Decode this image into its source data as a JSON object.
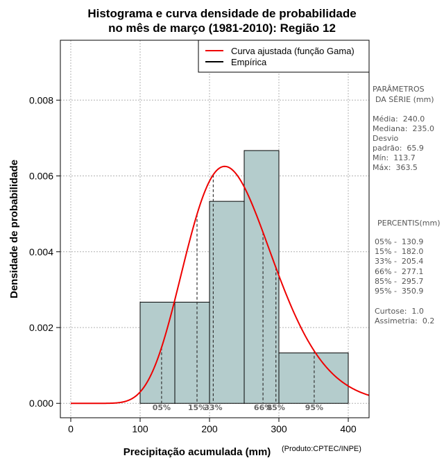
{
  "title_line1": "Histograma e curva densidade de probabilidade",
  "title_line2": "no mês de março (1981-2010): Região 12",
  "credit": "(Produto:CPTEC/INPE)",
  "colors": {
    "bar_fill": "#b4cccc",
    "curve": "#ee0000",
    "grid": "#b0b0b0"
  },
  "stats": {
    "header1": "PARÂMETROS",
    "header2": "DA SÉRIE (mm)",
    "media": "Média:  240.0",
    "mediana": "Mediana:  235.0",
    "desvio1": "Desvio",
    "desvio2": "padrão:  65.9",
    "min": "Mín:  113.7",
    "max": "Máx:  363.5"
  },
  "percentis": {
    "header": "PERCENTIS(mm)",
    "rows": [
      "05% -  130.9",
      "15% -  182.0",
      "33% -  205.4",
      "66% -  277.1",
      "85% -  295.7",
      "95% -  350.9"
    ],
    "curtose": "Curtose:  1.0",
    "assimetria": "Assimetria:  0.2"
  },
  "chart_data": {
    "type": "bar",
    "xlabel": "Precipitação acumulada (mm)",
    "ylabel": "Densidade de probabilidade",
    "xlim": [
      -15,
      430
    ],
    "ylim": [
      -0.00038,
      0.00958
    ],
    "x_ticks": [
      0,
      100,
      200,
      300,
      400
    ],
    "y_ticks": [
      0.0,
      0.002,
      0.004,
      0.006,
      0.008
    ],
    "y_tick_labels": [
      "0.000",
      "0.002",
      "0.004",
      "0.006",
      "0.008"
    ],
    "bins": [
      {
        "start": 100,
        "end": 150,
        "density": 0.00267
      },
      {
        "start": 150,
        "end": 200,
        "density": 0.00267
      },
      {
        "start": 200,
        "end": 250,
        "density": 0.00533
      },
      {
        "start": 250,
        "end": 300,
        "density": 0.00667
      },
      {
        "start": 300,
        "end": 400,
        "density": 0.00133
      }
    ],
    "gamma_curve": {
      "shape": 13.26,
      "scale": 18.1
    },
    "legend": [
      {
        "label": "Curva ajustada (função Gama)",
        "color": "#ee0000"
      },
      {
        "label": "Empírica",
        "color": "#000000"
      }
    ],
    "percentiles": [
      {
        "label": "05%",
        "value": 130.9
      },
      {
        "label": "15%",
        "value": 182.0
      },
      {
        "label": "33%",
        "value": 205.4
      },
      {
        "label": "66%",
        "value": 277.1
      },
      {
        "label": "85%",
        "value": 295.7
      },
      {
        "label": "95%",
        "value": 350.9
      }
    ]
  }
}
